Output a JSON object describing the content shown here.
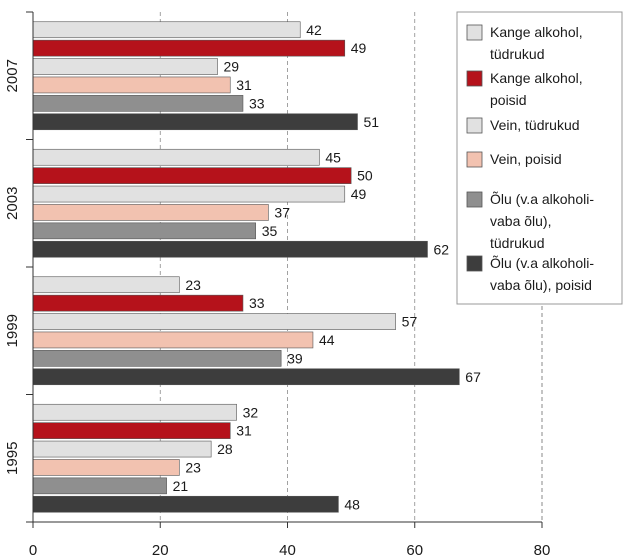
{
  "chart_data": {
    "type": "bar",
    "orientation": "horizontal",
    "title": "",
    "xlabel": "",
    "ylabel": "",
    "xlim": [
      0,
      80
    ],
    "x_ticks": [
      "0",
      "20",
      "40",
      "60",
      "80"
    ],
    "grid": "vertical dashed",
    "legend_position": "top-right",
    "categories": [
      "2007",
      "2003",
      "1999",
      "1995"
    ],
    "series": [
      {
        "name": "Kange alkohol, tüdrukud",
        "color": "#e1e1e1",
        "values": [
          42,
          45,
          23,
          32
        ]
      },
      {
        "name": "Kange alkohol, poisid",
        "color": "#b5121b",
        "values": [
          49,
          50,
          33,
          31
        ]
      },
      {
        "name": "Vein, tüdrukud",
        "color": "#e1e1e1",
        "values": [
          29,
          49,
          57,
          28
        ]
      },
      {
        "name": "Vein, poisid",
        "color": "#f2c2b0",
        "values": [
          31,
          37,
          44,
          23
        ]
      },
      {
        "name": "Õlu (v.a alkoholivaba õlu), tüdrukud",
        "color": "#8f8f8f",
        "values": [
          33,
          35,
          39,
          21
        ]
      },
      {
        "name": "Õlu (v.a alkoholivaba õlu), poisid",
        "color": "#3d3d3d",
        "values": [
          51,
          62,
          67,
          48
        ]
      }
    ],
    "legend": [
      {
        "lines": [
          "Kange alkohol,",
          "tüdrukud"
        ]
      },
      {
        "lines": [
          "Kange alkohol,",
          "poisid"
        ]
      },
      {
        "lines": [
          "Vein, tüdrukud"
        ]
      },
      {
        "lines": [
          "Vein, poisid"
        ]
      },
      {
        "lines": [
          "Õlu (v.a alkoholi-",
          "vaba õlu),",
          "tüdrukud"
        ]
      },
      {
        "lines": [
          "Õlu (v.a alkoholi-",
          "vaba õlu), poisid"
        ]
      }
    ]
  }
}
